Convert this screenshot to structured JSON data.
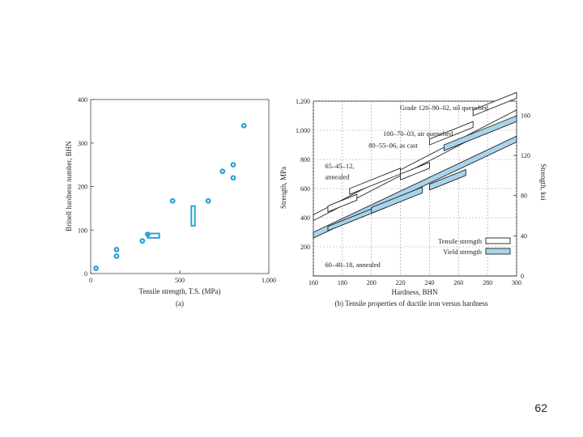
{
  "slide": {
    "page_number": "62"
  },
  "chart_data": [
    {
      "type": "scatter",
      "title": "",
      "caption": "(a)",
      "xlabel": "Tensile strength, T.S. (MPa)",
      "ylabel": "Brinell hardness number, BHN",
      "xlim": [
        0,
        1000
      ],
      "ylim": [
        0,
        400
      ],
      "x_ticks": [
        0,
        500,
        1000
      ],
      "x_tick_labels": [
        "0",
        "500",
        "1,000"
      ],
      "y_ticks": [
        0,
        100,
        200,
        300,
        400
      ],
      "y_tick_labels": [
        "0",
        "100",
        "200",
        "300",
        "400"
      ],
      "grid": false,
      "marker_color": "#29a3d6",
      "points": [
        {
          "x": 30,
          "y": 12
        },
        {
          "x": 145,
          "y": 40
        },
        {
          "x": 145,
          "y": 55
        },
        {
          "x": 290,
          "y": 75
        },
        {
          "x": 320,
          "y": 90
        },
        {
          "x": 460,
          "y": 167
        },
        {
          "x": 660,
          "y": 167
        },
        {
          "x": 740,
          "y": 235
        },
        {
          "x": 800,
          "y": 220
        },
        {
          "x": 800,
          "y": 250
        },
        {
          "x": 860,
          "y": 340
        }
      ],
      "range_boxes": [
        {
          "x": [
            320,
            385
          ],
          "y": [
            82,
            92
          ]
        },
        {
          "x": [
            565,
            585
          ],
          "y": [
            110,
            155
          ]
        }
      ]
    },
    {
      "type": "line",
      "title": "(b) Tensile properties of ductile iron versus hardness",
      "xlabel": "Hardness, BHN",
      "ylabel": "Strength, MPa",
      "ylabel_right": "Strength, ksi",
      "xlim": [
        160,
        300
      ],
      "ylim": [
        0,
        1200
      ],
      "x_ticks": [
        160,
        180,
        200,
        220,
        240,
        260,
        280,
        300
      ],
      "y_ticks": [
        200,
        400,
        600,
        800,
        1000,
        1200
      ],
      "y_tick_labels": [
        "200",
        "400",
        "600",
        "800",
        "1,000",
        "1,200"
      ],
      "y2_ticks": [
        0,
        40,
        80,
        120,
        160
      ],
      "grid": true,
      "legend": {
        "position": "bottom-right",
        "entries": [
          {
            "label": "Tensile strength",
            "color": "#ffffff"
          },
          {
            "label": "Yield strength",
            "color": "#a8d4ec"
          }
        ]
      },
      "annotations": [
        {
          "text": "Grade 120–90–02, oil quenched",
          "at": [
            250,
            1140
          ]
        },
        {
          "text": "100–70–03, air quenched",
          "at": [
            208,
            960
          ]
        },
        {
          "text": "80–55–06, as cast",
          "at": [
            198,
            880
          ]
        },
        {
          "text": "65–45–12,",
          "at": [
            168,
            740
          ]
        },
        {
          "text": "annealed",
          "at": [
            168,
            665
          ]
        },
        {
          "text": "60–40–18, annealed",
          "at": [
            168,
            60
          ]
        }
      ],
      "series": [
        {
          "name": "Tensile strength",
          "band": true,
          "x": [
            160,
            300
          ],
          "lower": [
            380,
            1100
          ],
          "upper": [
            420,
            1140
          ],
          "fill": "#ffffff"
        },
        {
          "name": "Yield strength",
          "band": true,
          "x": [
            160,
            300
          ],
          "lower": [
            260,
            920
          ],
          "upper": [
            300,
            960
          ],
          "fill": "#a8d4ec"
        }
      ],
      "grade_boxes": [
        {
          "grade": "60-40-18",
          "kind": "tensile",
          "x": [
            170,
            190
          ],
          "y": [
            440,
            480
          ]
        },
        {
          "grade": "60-40-18",
          "kind": "yield",
          "x": [
            170,
            210
          ],
          "y": [
            310,
            340
          ]
        },
        {
          "grade": "65-45-12",
          "kind": "tensile",
          "x": [
            185,
            220
          ],
          "y": [
            560,
            600
          ]
        },
        {
          "grade": "65-45-12",
          "kind": "yield",
          "x": [
            200,
            235
          ],
          "y": [
            430,
            470
          ]
        },
        {
          "grade": "80-55-06",
          "kind": "tensile",
          "x": [
            220,
            240
          ],
          "y": [
            660,
            700
          ]
        },
        {
          "grade": "80-55-06",
          "kind": "yield",
          "x": [
            240,
            265
          ],
          "y": [
            590,
            630
          ]
        },
        {
          "grade": "100-70-03",
          "kind": "tensile",
          "x": [
            240,
            270
          ],
          "y": [
            900,
            940
          ]
        },
        {
          "grade": "120-90-02",
          "kind": "tensile",
          "x": [
            270,
            300
          ],
          "y": [
            1100,
            1140
          ]
        },
        {
          "grade": "120-90-02",
          "kind": "yield",
          "x": [
            250,
            300
          ],
          "y": [
            860,
            900
          ]
        }
      ]
    }
  ]
}
